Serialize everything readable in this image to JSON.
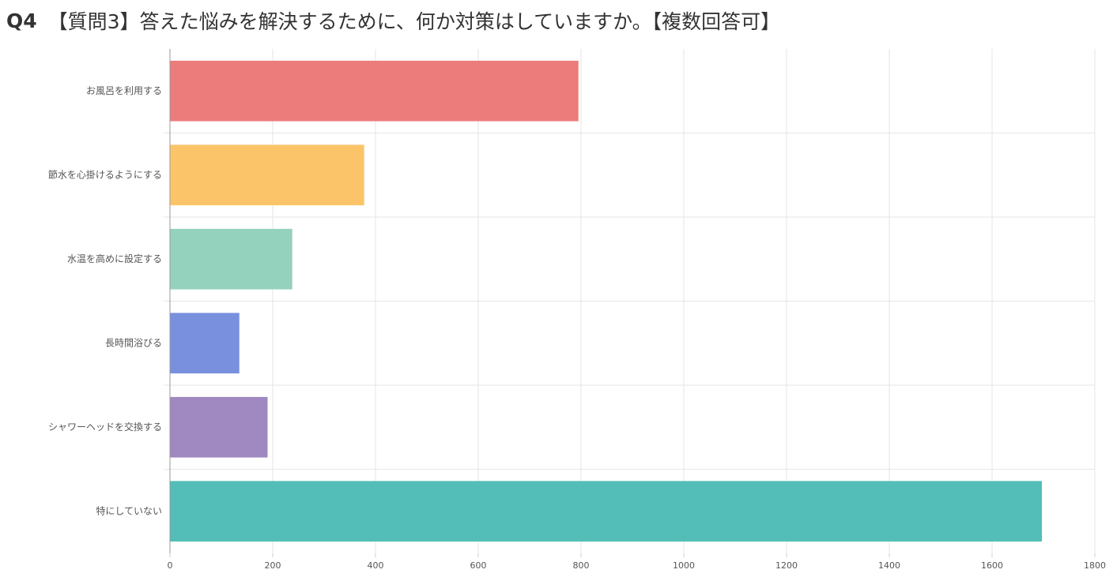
{
  "header": {
    "question_number": "Q4",
    "question_text": "【質問3】答えた悩みを解決するために、何か対策はしていますか。【複数回答可】"
  },
  "chart_data": {
    "type": "bar",
    "orientation": "horizontal",
    "categories": [
      "お風呂を利用する",
      "節水を心掛けるようにする",
      "水温を高めに設定する",
      "長時間浴びる",
      "シャワーヘッドを交換する",
      "特にしていない"
    ],
    "values": [
      795,
      378,
      238,
      135,
      190,
      1697
    ],
    "colors": [
      "#ec7c7c",
      "#fcc469",
      "#94d2bd",
      "#7990df",
      "#a088c0",
      "#53bdb7"
    ],
    "xlim": [
      0,
      1800
    ],
    "xticks": [
      "0",
      "200",
      "400",
      "600",
      "800",
      "1000",
      "1200",
      "1400",
      "1600",
      "1800"
    ],
    "grid": true,
    "legend": "none"
  }
}
